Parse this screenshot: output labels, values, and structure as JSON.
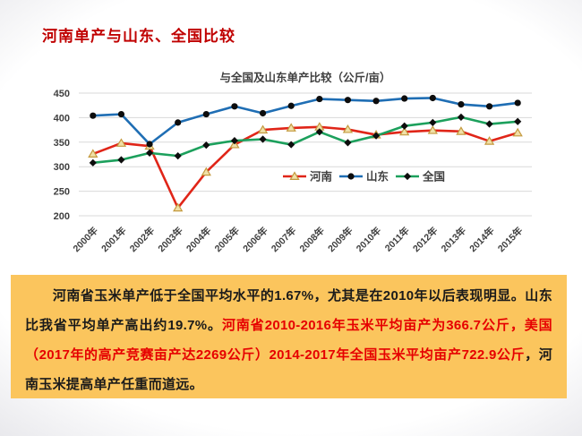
{
  "header": {
    "title": "河南单产与山东、全国比较",
    "title_color": "#c00000"
  },
  "chart": {
    "title": "与全国及山东单产比较（公斤/亩）"
  },
  "chart_data": {
    "type": "line",
    "title": "与全国及山东单产比较（公斤/亩）",
    "categories": [
      "2000年",
      "2001年",
      "2002年",
      "2003年",
      "2004年",
      "2005年",
      "2006年",
      "2007年",
      "2008年",
      "2009年",
      "2010年",
      "2011年",
      "2012年",
      "2013年",
      "2014年",
      "2015年"
    ],
    "series": [
      {
        "name": "河南",
        "color": "#e02518",
        "marker": "triangle",
        "marker_fill": "#f0e0a8",
        "marker_stroke": "#c49a3f",
        "values": [
          326,
          348,
          342,
          216,
          289,
          345,
          375,
          379,
          381,
          376,
          365,
          371,
          374,
          372,
          352,
          369
        ]
      },
      {
        "name": "山东",
        "color": "#1f6eb4",
        "marker": "circle",
        "marker_fill": "#0d0d0d",
        "values": [
          404,
          407,
          346,
          390,
          407,
          423,
          409,
          424,
          438,
          436,
          434,
          439,
          440,
          427,
          423,
          430
        ]
      },
      {
        "name": "全国",
        "color": "#1ca05c",
        "marker": "diamond",
        "marker_fill": "#0d0d0d",
        "values": [
          308,
          314,
          328,
          322,
          344,
          353,
          356,
          345,
          371,
          349,
          363,
          383,
          390,
          401,
          387,
          392
        ]
      }
    ],
    "ylim": [
      200,
      450
    ],
    "yticks": [
      200,
      250,
      300,
      350,
      400,
      450
    ],
    "grid": true,
    "gridline_color": "#d9d9d9",
    "axis_label_color": "#3f3f3f",
    "legend_position": "inside-bottom-center",
    "legend_labels": [
      "河南",
      "山东",
      "全国"
    ]
  },
  "summary": {
    "background": "#fbc55d",
    "segments": [
      {
        "text": "　　河南省玉米单产低于全国平均水平的1.67%，尤其是在2010年以后表现明显。山东比我省平均单产高出约19.7%。",
        "color": "#1a1a1a"
      },
      {
        "text": "河南省2010-2016年玉米平均亩产为366.7公斤，美国（2017年的高产竞赛亩产达2269公斤）2014-2017年全国玉米平均亩产722.9公斤",
        "color": "#e60000"
      },
      {
        "text": "，河南玉米提高单产任重而道远。",
        "color": "#1a1a1a"
      }
    ]
  }
}
